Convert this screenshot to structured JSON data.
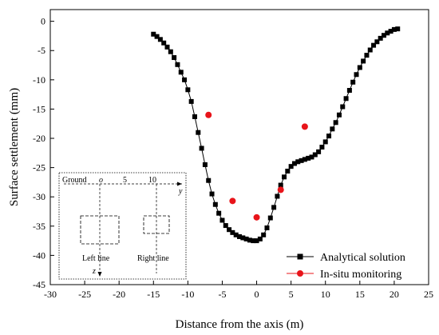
{
  "chart_data": {
    "type": "scatter",
    "xlabel": "Distance from the axis (m)",
    "ylabel": "Surface settlement (mm)",
    "xlim": [
      -30,
      25
    ],
    "ylim": [
      -45,
      2
    ],
    "xticks": [
      -30,
      -25,
      -20,
      -15,
      -10,
      -5,
      0,
      5,
      10,
      15,
      20,
      25
    ],
    "yticks": [
      0,
      -5,
      -10,
      -15,
      -20,
      -25,
      -30,
      -35,
      -40,
      -45
    ],
    "legend_position": "bottom-right",
    "series": [
      {
        "name": "Analytical solution",
        "kind": "line-with-square-markers",
        "color": "#000000",
        "x": [
          -15.0,
          -14.5,
          -14.0,
          -13.5,
          -13.0,
          -12.5,
          -12.0,
          -11.5,
          -11.0,
          -10.5,
          -10.0,
          -9.5,
          -9.0,
          -8.5,
          -8.0,
          -7.5,
          -7.0,
          -6.5,
          -6.0,
          -5.5,
          -5.0,
          -4.5,
          -4.0,
          -3.5,
          -3.0,
          -2.5,
          -2.0,
          -1.5,
          -1.0,
          -0.5,
          0.0,
          0.5,
          1.0,
          1.5,
          2.0,
          2.5,
          3.0,
          3.5,
          4.0,
          4.5,
          5.0,
          5.5,
          6.0,
          6.5,
          7.0,
          7.5,
          8.0,
          8.5,
          9.0,
          9.5,
          10.0,
          10.5,
          11.0,
          11.5,
          12.0,
          12.5,
          13.0,
          13.5,
          14.0,
          14.5,
          15.0,
          15.5,
          16.0,
          16.5,
          17.0,
          17.5,
          18.0,
          18.5,
          19.0,
          19.5,
          20.0,
          20.5
        ],
        "y": [
          -2.2,
          -2.6,
          -3.1,
          -3.7,
          -4.4,
          -5.2,
          -6.2,
          -7.4,
          -8.7,
          -10.0,
          -11.7,
          -13.7,
          -16.3,
          -19.0,
          -21.7,
          -24.5,
          -27.2,
          -29.5,
          -31.3,
          -32.8,
          -34.0,
          -34.9,
          -35.6,
          -36.1,
          -36.5,
          -36.8,
          -37.0,
          -37.2,
          -37.4,
          -37.5,
          -37.5,
          -37.2,
          -36.5,
          -35.3,
          -33.6,
          -31.8,
          -29.9,
          -28.0,
          -26.6,
          -25.6,
          -24.8,
          -24.3,
          -24.0,
          -23.8,
          -23.6,
          -23.4,
          -23.2,
          -22.8,
          -22.3,
          -21.5,
          -20.6,
          -19.6,
          -18.4,
          -17.3,
          -16.0,
          -14.6,
          -13.2,
          -11.8,
          -10.4,
          -9.1,
          -7.9,
          -6.8,
          -5.8,
          -4.9,
          -4.1,
          -3.5,
          -2.9,
          -2.4,
          -2.0,
          -1.7,
          -1.4,
          -1.3
        ]
      },
      {
        "name": "In-situ monitoring",
        "kind": "markers",
        "color": "#e8141a",
        "x": [
          -7.0,
          -3.5,
          0.0,
          3.5,
          7.0
        ],
        "y": [
          -16.0,
          -30.7,
          -33.5,
          -28.8,
          -18.0
        ]
      }
    ],
    "inset": {
      "ground_label": "Ground",
      "origin_label": "o",
      "tick_5": "5",
      "tick_10": "10",
      "y_axis_label": "y",
      "z_axis_label": "z",
      "left_label": "Left line",
      "right_label": "Right line"
    }
  }
}
